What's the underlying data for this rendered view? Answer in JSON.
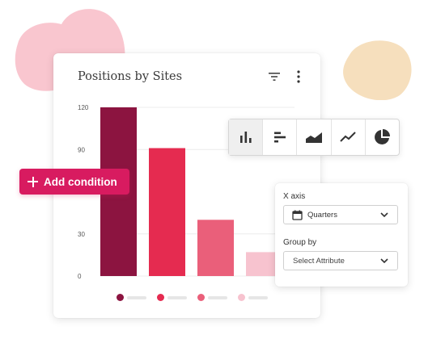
{
  "card": {
    "title": "Positions by Sites",
    "filter_icon": "filter-icon",
    "more_icon": "more-vertical-icon"
  },
  "add_condition": {
    "label": "Add condition",
    "icon": "plus-icon"
  },
  "toolbar": {
    "tools": [
      {
        "icon": "bar-chart-icon",
        "active": true
      },
      {
        "icon": "horizontal-bar-chart-icon",
        "active": false
      },
      {
        "icon": "area-chart-icon",
        "active": false
      },
      {
        "icon": "line-chart-icon",
        "active": false
      },
      {
        "icon": "pie-chart-icon",
        "active": false
      }
    ]
  },
  "panel": {
    "x_axis_label": "X axis",
    "x_axis_value": "Quarters",
    "x_axis_icon": "calendar-icon",
    "group_by_label": "Group by",
    "group_by_placeholder": "Select Attribute"
  },
  "colors": {
    "accent": "#d81b60",
    "series": [
      "#8c1440",
      "#e52b50",
      "#ea5f7a",
      "#f7c3cf"
    ],
    "blob_pink": "#f9c6cf",
    "blob_beige": "#f6dfbd"
  },
  "chart_data": {
    "type": "bar",
    "yticks": [
      "0",
      "30",
      "90",
      "120"
    ],
    "ylim": [
      0,
      120
    ],
    "grid": true,
    "values": [
      120,
      91,
      40,
      17
    ]
  }
}
